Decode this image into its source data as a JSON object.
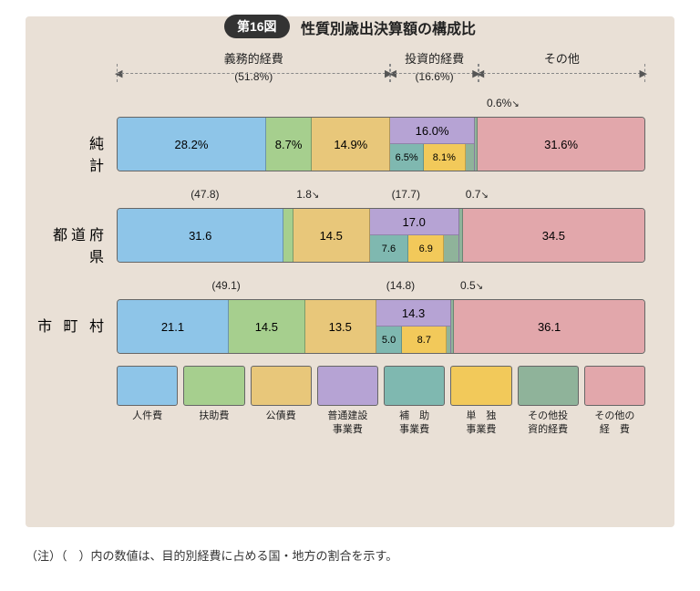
{
  "figure_label": "第16図",
  "figure_title": "性質別歳出決算額の構成比",
  "brackets": [
    {
      "label": "義務的経費",
      "pct": "(51.8%)",
      "left_pct": 0,
      "width_pct": 51.8
    },
    {
      "label": "投資的経費",
      "pct": "(16.6%)",
      "left_pct": 51.8,
      "width_pct": 16.6
    },
    {
      "label": "その他",
      "pct": "",
      "left_pct": 68.4,
      "width_pct": 31.6
    }
  ],
  "colors": {
    "c0": "#8ec5e8",
    "c1": "#a6cf8e",
    "c2": "#e8c77a",
    "c3": "#b6a3d4",
    "c4": "#7fb8b0",
    "c5": "#f2c95a",
    "c6": "#8fb39a",
    "c7": "#e2a7ab",
    "bg": "#e9e0d6"
  },
  "rows": [
    {
      "label": "純　　計",
      "meta": [
        {
          "text": "0.6%",
          "left_pct": 70,
          "arrow": "↘"
        }
      ],
      "segs": [
        {
          "w": 28.2,
          "c": "c0",
          "t": "28.2%"
        },
        {
          "w": 8.7,
          "c": "c1",
          "t": "8.7%"
        },
        {
          "w": 14.9,
          "c": "c2",
          "t": "14.9%"
        },
        {
          "w": 16.0,
          "c": "c3",
          "split": {
            "top": "16.0%",
            "bot": [
              {
                "w": 40,
                "c": "c4",
                "t": "6.5%"
              },
              {
                "w": 50,
                "c": "c5",
                "t": "8.1%"
              },
              {
                "w": 10,
                "c": "c6",
                "t": ""
              }
            ]
          }
        },
        {
          "w": 0.6,
          "c": "c6",
          "t": ""
        },
        {
          "w": 31.6,
          "c": "c7",
          "t": "31.6%"
        }
      ]
    },
    {
      "label": "都道府県",
      "meta": [
        {
          "text": "(47.8)",
          "left_pct": 14
        },
        {
          "text": "1.8",
          "left_pct": 34,
          "arrow": "↘"
        },
        {
          "text": "(17.7)",
          "left_pct": 52
        },
        {
          "text": "0.7",
          "left_pct": 66,
          "arrow": "↘"
        }
      ],
      "segs": [
        {
          "w": 31.6,
          "c": "c0",
          "t": "31.6"
        },
        {
          "w": 1.8,
          "c": "c1",
          "t": ""
        },
        {
          "w": 14.5,
          "c": "c2",
          "t": "14.5"
        },
        {
          "w": 17.0,
          "c": "c3",
          "split": {
            "top": "17.0",
            "bot": [
              {
                "w": 44,
                "c": "c4",
                "t": "7.6"
              },
              {
                "w": 40,
                "c": "c5",
                "t": "6.9"
              },
              {
                "w": 16,
                "c": "c6",
                "t": ""
              }
            ]
          }
        },
        {
          "w": 0.7,
          "c": "c6",
          "t": ""
        },
        {
          "w": 34.5,
          "c": "c7",
          "t": "34.5"
        }
      ]
    },
    {
      "label": "市 町 村",
      "meta": [
        {
          "text": "(49.1)",
          "left_pct": 18
        },
        {
          "text": "(14.8)",
          "left_pct": 51
        },
        {
          "text": "0.5",
          "left_pct": 65,
          "arrow": "↘"
        }
      ],
      "segs": [
        {
          "w": 21.1,
          "c": "c0",
          "t": "21.1"
        },
        {
          "w": 14.5,
          "c": "c1",
          "t": "14.5"
        },
        {
          "w": 13.5,
          "c": "c2",
          "t": "13.5"
        },
        {
          "w": 14.3,
          "c": "c3",
          "split": {
            "top": "14.3",
            "bot": [
              {
                "w": 35,
                "c": "c4",
                "t": "5.0"
              },
              {
                "w": 60,
                "c": "c5",
                "t": "8.7"
              },
              {
                "w": 5,
                "c": "c6",
                "t": ""
              }
            ]
          }
        },
        {
          "w": 0.5,
          "c": "c6",
          "t": ""
        },
        {
          "w": 36.1,
          "c": "c7",
          "t": "36.1"
        }
      ]
    }
  ],
  "legend": [
    {
      "c": "c0",
      "label": "人件費"
    },
    {
      "c": "c1",
      "label": "扶助費"
    },
    {
      "c": "c2",
      "label": "公債費"
    },
    {
      "c": "c3",
      "label": "普通建設\n事業費"
    },
    {
      "c": "c4",
      "label": "補　助\n事業費"
    },
    {
      "c": "c5",
      "label": "単　独\n事業費"
    },
    {
      "c": "c6",
      "label": "その他投\n資的経費"
    },
    {
      "c": "c7",
      "label": "その他の\n経　費"
    }
  ],
  "footnote": "（注）（　）内の数値は、目的別経費に占める国・地方の割合を示す。"
}
